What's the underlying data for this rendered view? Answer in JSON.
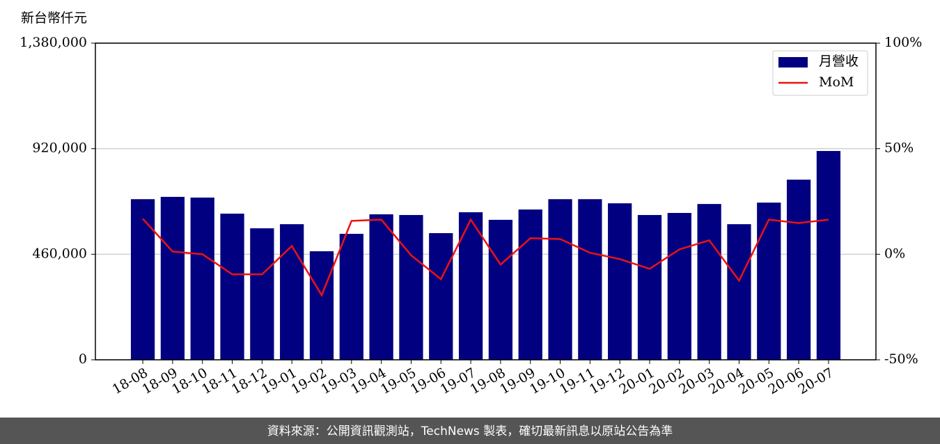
{
  "chart_data": {
    "type": "bar",
    "ylabel": "新台幣仟元",
    "categories": [
      "18-08",
      "18-09",
      "18-10",
      "18-11",
      "18-12",
      "19-01",
      "19-02",
      "19-03",
      "19-04",
      "19-05",
      "19-06",
      "19-07",
      "19-08",
      "19-09",
      "19-10",
      "19-11",
      "19-12",
      "20-01",
      "20-02",
      "20-03",
      "20-04",
      "20-05",
      "20-06",
      "20-07"
    ],
    "series": [
      {
        "name": "月營收",
        "type": "bar",
        "color": "#000080",
        "values": [
          700000,
          710000,
          707000,
          637000,
          573000,
          591000,
          473000,
          549000,
          634000,
          631000,
          552000,
          643000,
          610000,
          655000,
          700000,
          700000,
          682000,
          631000,
          640000,
          679000,
          591000,
          685000,
          785000,
          910000
        ]
      },
      {
        "name": "MoM",
        "type": "line",
        "axis": "y2",
        "color": "#ee1111",
        "values": [
          16.8,
          1.3,
          0,
          -9.5,
          -9.5,
          3.9,
          -19.4,
          15.8,
          16.4,
          -0.5,
          -11.8,
          16.4,
          -4.9,
          7.6,
          7.2,
          0.7,
          -2.3,
          -6.9,
          2.3,
          6.6,
          -12.5,
          16.4,
          14.8,
          16.4
        ]
      }
    ],
    "ylim": [
      0,
      1380000
    ],
    "yticks": [
      0,
      {
        "value": 460000,
        "label": "460,000"
      },
      {
        "value": 920000,
        "label": "920,000"
      },
      {
        "value": 1380000,
        "label": "1,380,000"
      }
    ],
    "y2lim": [
      -50,
      100
    ],
    "y2ticks": [
      {
        "value": -50,
        "label": "-50%"
      },
      {
        "value": 0,
        "label": "0%"
      },
      {
        "value": 50,
        "label": "50%"
      },
      {
        "value": 100,
        "label": "100%"
      }
    ],
    "grid": true,
    "legend": "upper right"
  },
  "footer": "資料來源：公開資訊觀測站，TechNews 製表，確切最新訊息以原站公告為準"
}
